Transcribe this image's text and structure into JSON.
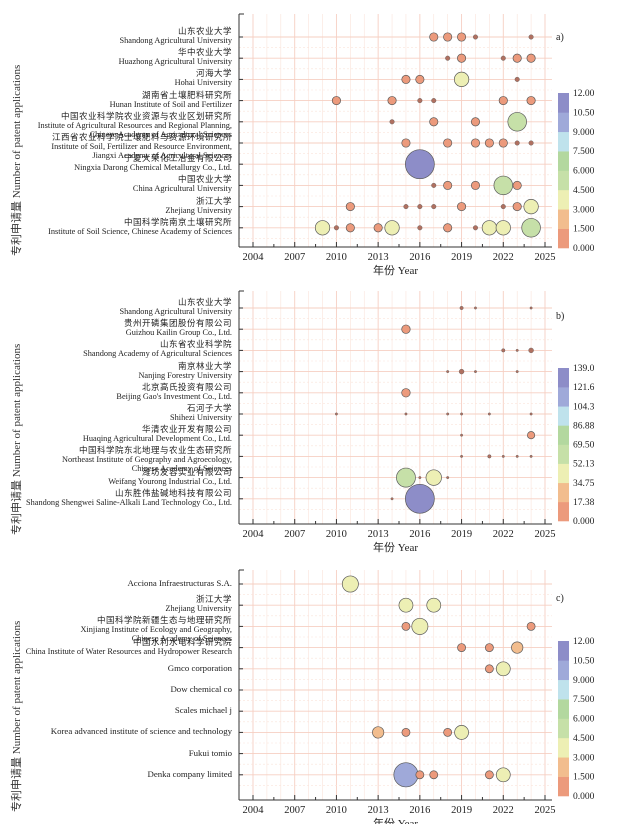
{
  "common": {
    "ylabel": "专利申请量 Number of patent applications",
    "xlabel": "年份 Year",
    "xticks": [
      "2004",
      "2007",
      "2010",
      "2013",
      "2016",
      "2019",
      "2022",
      "2025"
    ]
  },
  "palette": {
    "bins_colors": [
      "#ec9a7c",
      "#f2bd8e",
      "#edefb4",
      "#c6e0a8",
      "#b3d89f",
      "#bfe2ec",
      "#9fa9d9",
      "#8d8dc8"
    ],
    "bubble_stroke": "#555555"
  },
  "chart_data": [
    {
      "type": "scatter",
      "panel_label": "a)",
      "title": "",
      "xlabel": "年份 Year",
      "ylabel": "专利申请量 Number of patent applications",
      "xlim": [
        2003,
        2025.5
      ],
      "colorbar_ticks": [
        "0.000",
        "1.500",
        "3.000",
        "4.500",
        "6.000",
        "7.500",
        "9.000",
        "10.50",
        "12.00"
      ],
      "colorbar_range": [
        0,
        12
      ],
      "categories": [
        {
          "cn": "山东农业大学",
          "en": [
            "Shandong Agricultural University"
          ]
        },
        {
          "cn": "华中农业大学",
          "en": [
            "Huazhong Agricultural University"
          ]
        },
        {
          "cn": "河海大学",
          "en": [
            "Hohai University"
          ]
        },
        {
          "cn": "湖南省土壤肥料研究所",
          "en": [
            "Hunan Institute of Soil and Fertilizer"
          ]
        },
        {
          "cn": "中国农业科学院农业资源与农业区划研究所",
          "en": [
            "Institute of Agricultural Resources and Regional Planning,",
            "Chinese Academy of Agricultural Sciences"
          ]
        },
        {
          "cn": "江西省农业科学院土壤肥料与资源环境研究所",
          "en": [
            "Institute of Soil, Fertilizer and Resource Environment,",
            "Jiangxi Academy of Agricultural Sciences"
          ]
        },
        {
          "cn": "宁夏大荣化工冶金有限公司",
          "en": [
            "Ningxia Darong Chemical Metallurgy Co., Ltd."
          ]
        },
        {
          "cn": "中国农业大学",
          "en": [
            "China Agricultural University"
          ]
        },
        {
          "cn": "浙江大学",
          "en": [
            "Zhejiang University"
          ]
        },
        {
          "cn": "中国科学院南京土壤研究所",
          "en": [
            "Institute of Soil Science, Chinese Academy of Sciences"
          ]
        }
      ],
      "points": [
        {
          "cat": 0,
          "year": 2017,
          "value": 1
        },
        {
          "cat": 0,
          "year": 2018,
          "value": 1
        },
        {
          "cat": 0,
          "year": 2019,
          "value": 1
        },
        {
          "cat": 0,
          "year": 2020,
          "value": 0.3
        },
        {
          "cat": 0,
          "year": 2024,
          "value": 0.3
        },
        {
          "cat": 1,
          "year": 2018,
          "value": 0.3
        },
        {
          "cat": 1,
          "year": 2019,
          "value": 1
        },
        {
          "cat": 1,
          "year": 2022,
          "value": 0.3
        },
        {
          "cat": 1,
          "year": 2023,
          "value": 1
        },
        {
          "cat": 1,
          "year": 2024,
          "value": 1
        },
        {
          "cat": 2,
          "year": 2015,
          "value": 1
        },
        {
          "cat": 2,
          "year": 2016,
          "value": 1
        },
        {
          "cat": 2,
          "year": 2019,
          "value": 3
        },
        {
          "cat": 2,
          "year": 2023,
          "value": 0.3
        },
        {
          "cat": 3,
          "year": 2010,
          "value": 1
        },
        {
          "cat": 3,
          "year": 2014,
          "value": 1
        },
        {
          "cat": 3,
          "year": 2016,
          "value": 0.3
        },
        {
          "cat": 3,
          "year": 2017,
          "value": 0.3
        },
        {
          "cat": 3,
          "year": 2022,
          "value": 1
        },
        {
          "cat": 3,
          "year": 2024,
          "value": 1
        },
        {
          "cat": 4,
          "year": 2014,
          "value": 0.3
        },
        {
          "cat": 4,
          "year": 2017,
          "value": 1
        },
        {
          "cat": 4,
          "year": 2020,
          "value": 1
        },
        {
          "cat": 4,
          "year": 2023,
          "value": 5
        },
        {
          "cat": 5,
          "year": 2015,
          "value": 1
        },
        {
          "cat": 5,
          "year": 2018,
          "value": 1
        },
        {
          "cat": 5,
          "year": 2020,
          "value": 1
        },
        {
          "cat": 5,
          "year": 2021,
          "value": 1
        },
        {
          "cat": 5,
          "year": 2022,
          "value": 1
        },
        {
          "cat": 5,
          "year": 2023,
          "value": 0.3
        },
        {
          "cat": 5,
          "year": 2024,
          "value": 0.3
        },
        {
          "cat": 6,
          "year": 2016,
          "value": 12
        },
        {
          "cat": 7,
          "year": 2017,
          "value": 0.3
        },
        {
          "cat": 7,
          "year": 2018,
          "value": 1
        },
        {
          "cat": 7,
          "year": 2020,
          "value": 1
        },
        {
          "cat": 7,
          "year": 2022,
          "value": 5
        },
        {
          "cat": 7,
          "year": 2023,
          "value": 1
        },
        {
          "cat": 8,
          "year": 2011,
          "value": 1
        },
        {
          "cat": 8,
          "year": 2015,
          "value": 0.3
        },
        {
          "cat": 8,
          "year": 2016,
          "value": 0.3
        },
        {
          "cat": 8,
          "year": 2017,
          "value": 0.3
        },
        {
          "cat": 8,
          "year": 2019,
          "value": 1
        },
        {
          "cat": 8,
          "year": 2022,
          "value": 0.3
        },
        {
          "cat": 8,
          "year": 2023,
          "value": 1
        },
        {
          "cat": 8,
          "year": 2024,
          "value": 3
        },
        {
          "cat": 9,
          "year": 2009,
          "value": 3
        },
        {
          "cat": 9,
          "year": 2010,
          "value": 0.3
        },
        {
          "cat": 9,
          "year": 2011,
          "value": 1
        },
        {
          "cat": 9,
          "year": 2013,
          "value": 1
        },
        {
          "cat": 9,
          "year": 2014,
          "value": 3
        },
        {
          "cat": 9,
          "year": 2016,
          "value": 0.3
        },
        {
          "cat": 9,
          "year": 2018,
          "value": 1
        },
        {
          "cat": 9,
          "year": 2020,
          "value": 0.3
        },
        {
          "cat": 9,
          "year": 2021,
          "value": 3
        },
        {
          "cat": 9,
          "year": 2022,
          "value": 3
        },
        {
          "cat": 9,
          "year": 2024,
          "value": 5
        }
      ]
    },
    {
      "type": "scatter",
      "panel_label": "b)",
      "title": "",
      "xlabel": "年份 Year",
      "ylabel": "专利申请量 Number of patent applications",
      "xlim": [
        2003,
        2025.5
      ],
      "colorbar_ticks": [
        "0.000",
        "17.38",
        "34.75",
        "52.13",
        "69.50",
        "86.88",
        "104.3",
        "121.6",
        "139.0"
      ],
      "colorbar_range": [
        0,
        139
      ],
      "categories": [
        {
          "cn": "山东农业大学",
          "en": [
            "Shandong Agricultural University"
          ]
        },
        {
          "cn": "贵州开磷集团股份有限公司",
          "en": [
            "Guizhou Kailin Group Co., Ltd."
          ]
        },
        {
          "cn": "山东省农业科学院",
          "en": [
            "Shandong Academy of Agricultural Sciences"
          ]
        },
        {
          "cn": "南京林业大学",
          "en": [
            "Nanjing Forestry University"
          ]
        },
        {
          "cn": "北京高氏投资有限公司",
          "en": [
            "Beijing Gao's Investment Co., Ltd."
          ]
        },
        {
          "cn": "石河子大学",
          "en": [
            "Shihezi University"
          ]
        },
        {
          "cn": "华清农业开发有限公司",
          "en": [
            "Huaqing Agricultural Development Co., Ltd."
          ]
        },
        {
          "cn": "中国科学院东北地理与农业生态研究所",
          "en": [
            "Northeast Institute of Geography and Agroecology,",
            "Chinese Academy of Sciences"
          ]
        },
        {
          "cn": "潍坊友容实业有限公司",
          "en": [
            "Weifang Yourong Industrial Co., Ltd."
          ]
        },
        {
          "cn": "山东胜伟盐碱地科技有限公司",
          "en": [
            "Shandong Shengwei Saline-Alkali Land Technology Co., Ltd."
          ]
        }
      ],
      "points": [
        {
          "cat": 0,
          "year": 2019,
          "value": 2
        },
        {
          "cat": 0,
          "year": 2020,
          "value": 1
        },
        {
          "cat": 0,
          "year": 2024,
          "value": 1
        },
        {
          "cat": 1,
          "year": 2015,
          "value": 12
        },
        {
          "cat": 2,
          "year": 2022,
          "value": 2
        },
        {
          "cat": 2,
          "year": 2023,
          "value": 1
        },
        {
          "cat": 2,
          "year": 2024,
          "value": 4
        },
        {
          "cat": 3,
          "year": 2018,
          "value": 1
        },
        {
          "cat": 3,
          "year": 2019,
          "value": 4
        },
        {
          "cat": 3,
          "year": 2020,
          "value": 1
        },
        {
          "cat": 3,
          "year": 2023,
          "value": 1
        },
        {
          "cat": 4,
          "year": 2015,
          "value": 12
        },
        {
          "cat": 5,
          "year": 2010,
          "value": 1
        },
        {
          "cat": 5,
          "year": 2015,
          "value": 1
        },
        {
          "cat": 5,
          "year": 2018,
          "value": 1
        },
        {
          "cat": 5,
          "year": 2019,
          "value": 1
        },
        {
          "cat": 5,
          "year": 2021,
          "value": 1
        },
        {
          "cat": 5,
          "year": 2024,
          "value": 1
        },
        {
          "cat": 6,
          "year": 2019,
          "value": 1
        },
        {
          "cat": 6,
          "year": 2024,
          "value": 9
        },
        {
          "cat": 7,
          "year": 2019,
          "value": 1
        },
        {
          "cat": 7,
          "year": 2021,
          "value": 2
        },
        {
          "cat": 7,
          "year": 2022,
          "value": 1
        },
        {
          "cat": 7,
          "year": 2023,
          "value": 1
        },
        {
          "cat": 7,
          "year": 2024,
          "value": 1
        },
        {
          "cat": 8,
          "year": 2015,
          "value": 60
        },
        {
          "cat": 8,
          "year": 2016,
          "value": 1
        },
        {
          "cat": 8,
          "year": 2017,
          "value": 40
        },
        {
          "cat": 8,
          "year": 2018,
          "value": 1
        },
        {
          "cat": 9,
          "year": 2014,
          "value": 1
        },
        {
          "cat": 9,
          "year": 2016,
          "value": 139
        }
      ]
    },
    {
      "type": "scatter",
      "panel_label": "c)",
      "title": "",
      "xlabel": "年份 Year",
      "ylabel": "专利申请量 Number of patent applications",
      "xlim": [
        2003,
        2025.5
      ],
      "colorbar_ticks": [
        "0.000",
        "1.500",
        "3.000",
        "4.500",
        "6.000",
        "7.500",
        "9.000",
        "10.50",
        "12.00"
      ],
      "colorbar_range": [
        0,
        12
      ],
      "categories": [
        {
          "cn": "",
          "en": [
            "Acciona Infraestructuras S.A."
          ]
        },
        {
          "cn": "浙江大学",
          "en": [
            "Zhejiang University"
          ]
        },
        {
          "cn": "中国科学院新疆生态与地理研究所",
          "en": [
            "Xinjiang Institute of Ecology and Geography,",
            "Chinese Academy of Sciences"
          ]
        },
        {
          "cn": "中国水利水电科学研究院",
          "en": [
            "China Institute of Water Resources and Hydropower Research"
          ]
        },
        {
          "cn": "",
          "en": [
            "Gmco corporation"
          ]
        },
        {
          "cn": "",
          "en": [
            "Dow chemical co"
          ]
        },
        {
          "cn": "",
          "en": [
            "Scales michael j"
          ]
        },
        {
          "cn": "",
          "en": [
            "Korea advanced institute of science and technology"
          ]
        },
        {
          "cn": "",
          "en": [
            "Fukui tomio"
          ]
        },
        {
          "cn": "",
          "en": [
            "Denka company limited"
          ]
        }
      ],
      "points": [
        {
          "cat": 0,
          "year": 2011,
          "value": 4
        },
        {
          "cat": 1,
          "year": 2015,
          "value": 3
        },
        {
          "cat": 1,
          "year": 2017,
          "value": 3
        },
        {
          "cat": 2,
          "year": 2015,
          "value": 1
        },
        {
          "cat": 2,
          "year": 2016,
          "value": 4
        },
        {
          "cat": 2,
          "year": 2024,
          "value": 1
        },
        {
          "cat": 3,
          "year": 2019,
          "value": 1
        },
        {
          "cat": 3,
          "year": 2021,
          "value": 1
        },
        {
          "cat": 3,
          "year": 2023,
          "value": 2
        },
        {
          "cat": 4,
          "year": 2021,
          "value": 1
        },
        {
          "cat": 4,
          "year": 2022,
          "value": 3
        },
        {
          "cat": 7,
          "year": 2013,
          "value": 2
        },
        {
          "cat": 7,
          "year": 2015,
          "value": 1
        },
        {
          "cat": 7,
          "year": 2018,
          "value": 1
        },
        {
          "cat": 7,
          "year": 2019,
          "value": 3
        },
        {
          "cat": 9,
          "year": 2015,
          "value": 9
        },
        {
          "cat": 9,
          "year": 2016,
          "value": 1
        },
        {
          "cat": 9,
          "year": 2017,
          "value": 1
        },
        {
          "cat": 9,
          "year": 2021,
          "value": 1
        },
        {
          "cat": 9,
          "year": 2022,
          "value": 3
        }
      ]
    }
  ]
}
